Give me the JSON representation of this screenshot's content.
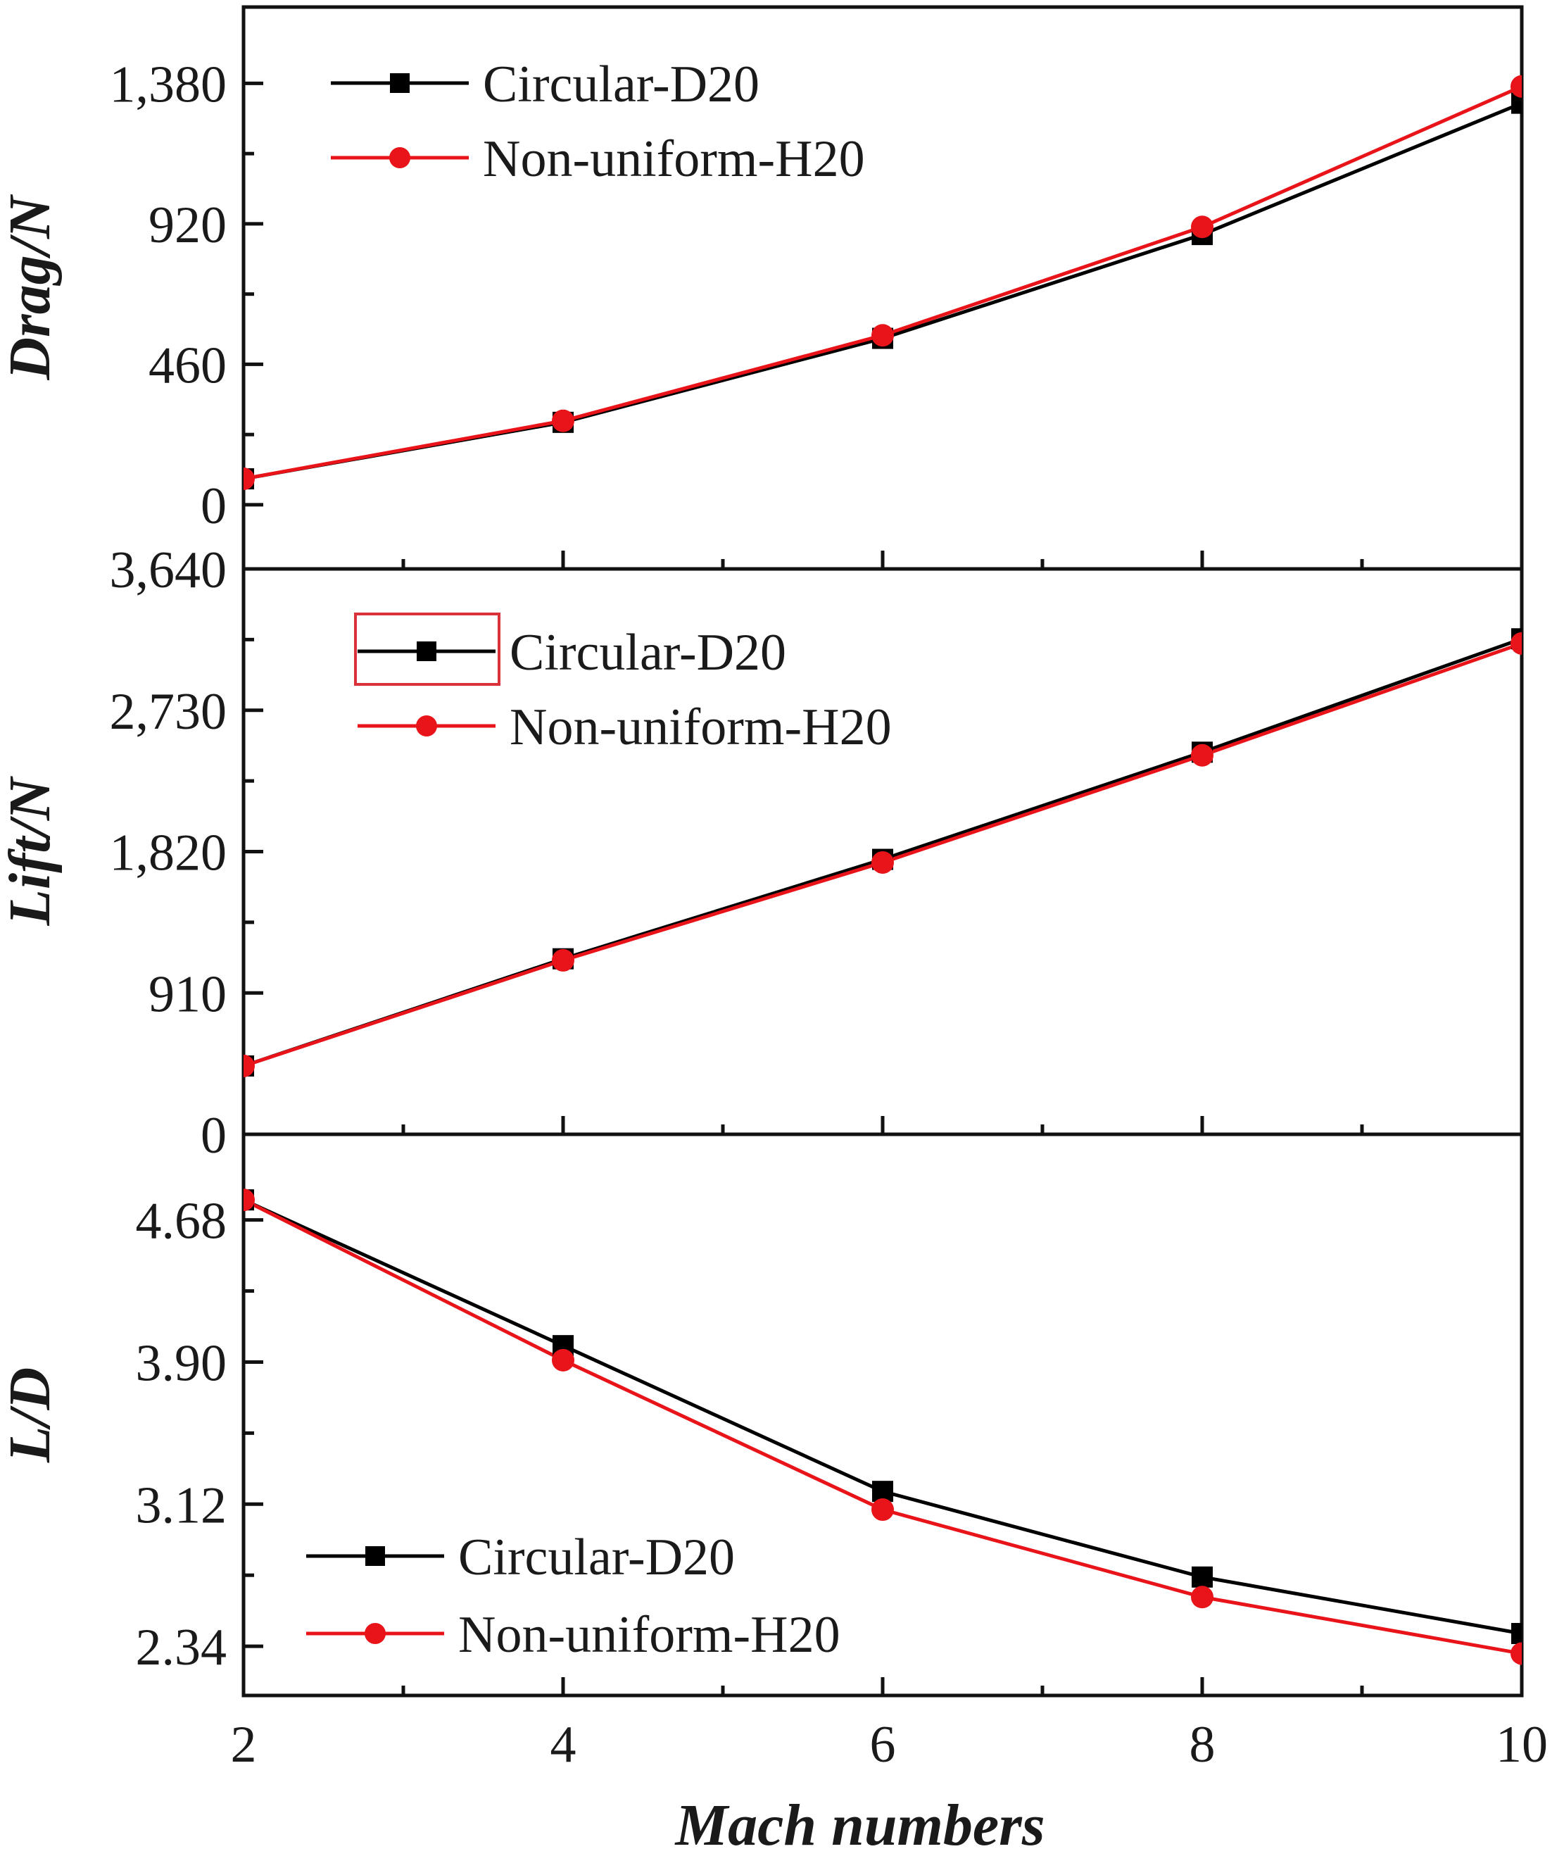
{
  "figure": {
    "xlabel": "Mach numbers",
    "x_ticks": [
      "2",
      "4",
      "6",
      "8",
      "10"
    ],
    "colors": {
      "circular": "#000000",
      "nonuniform": "#e8141a",
      "highlight_box": "#d9323a"
    }
  },
  "chart_data": [
    {
      "type": "line",
      "title": "",
      "ylabel": "Drag/N",
      "xlabel": "Mach numbers",
      "x": [
        2,
        4,
        6,
        8,
        10
      ],
      "xlim": [
        2,
        10
      ],
      "ylim": [
        -210,
        1630
      ],
      "y_ticks": [
        "0",
        "460",
        "920",
        "1,380"
      ],
      "series": [
        {
          "name": "Circular-D20",
          "marker": "square",
          "values": [
            85,
            270,
            545,
            885,
            1315
          ]
        },
        {
          "name": "Non-uniform-H20",
          "marker": "circle",
          "values": [
            85,
            275,
            555,
            910,
            1370
          ]
        }
      ],
      "legend_position": "top-left"
    },
    {
      "type": "line",
      "title": "",
      "ylabel": "Lift/N",
      "xlabel": "Mach numbers",
      "x": [
        2,
        4,
        6,
        8,
        10
      ],
      "xlim": [
        2,
        10
      ],
      "ylim": [
        0,
        3640
      ],
      "y_ticks": [
        "0",
        "910",
        "1,820",
        "2,730",
        "3,640"
      ],
      "series": [
        {
          "name": "Circular-D20",
          "marker": "square",
          "values": [
            440,
            1130,
            1770,
            2460,
            3190
          ]
        },
        {
          "name": "Non-uniform-H20",
          "marker": "circle",
          "values": [
            440,
            1120,
            1750,
            2440,
            3160
          ]
        }
      ],
      "legend_position": "top-left",
      "legend_highlight_box": true
    },
    {
      "type": "line",
      "title": "",
      "ylabel": "L/D",
      "xlabel": "Mach numbers",
      "x": [
        2,
        4,
        6,
        8,
        10
      ],
      "xlim": [
        2,
        10
      ],
      "ylim": [
        2.07,
        5.15
      ],
      "y_ticks": [
        "2.34",
        "3.12",
        "3.90",
        "4.68"
      ],
      "series": [
        {
          "name": "Circular-D20",
          "marker": "square",
          "values": [
            4.79,
            3.99,
            3.19,
            2.72,
            2.41
          ]
        },
        {
          "name": "Non-uniform-H20",
          "marker": "circle",
          "values": [
            4.79,
            3.91,
            3.09,
            2.61,
            2.3
          ]
        }
      ],
      "legend_position": "bottom-left"
    }
  ]
}
